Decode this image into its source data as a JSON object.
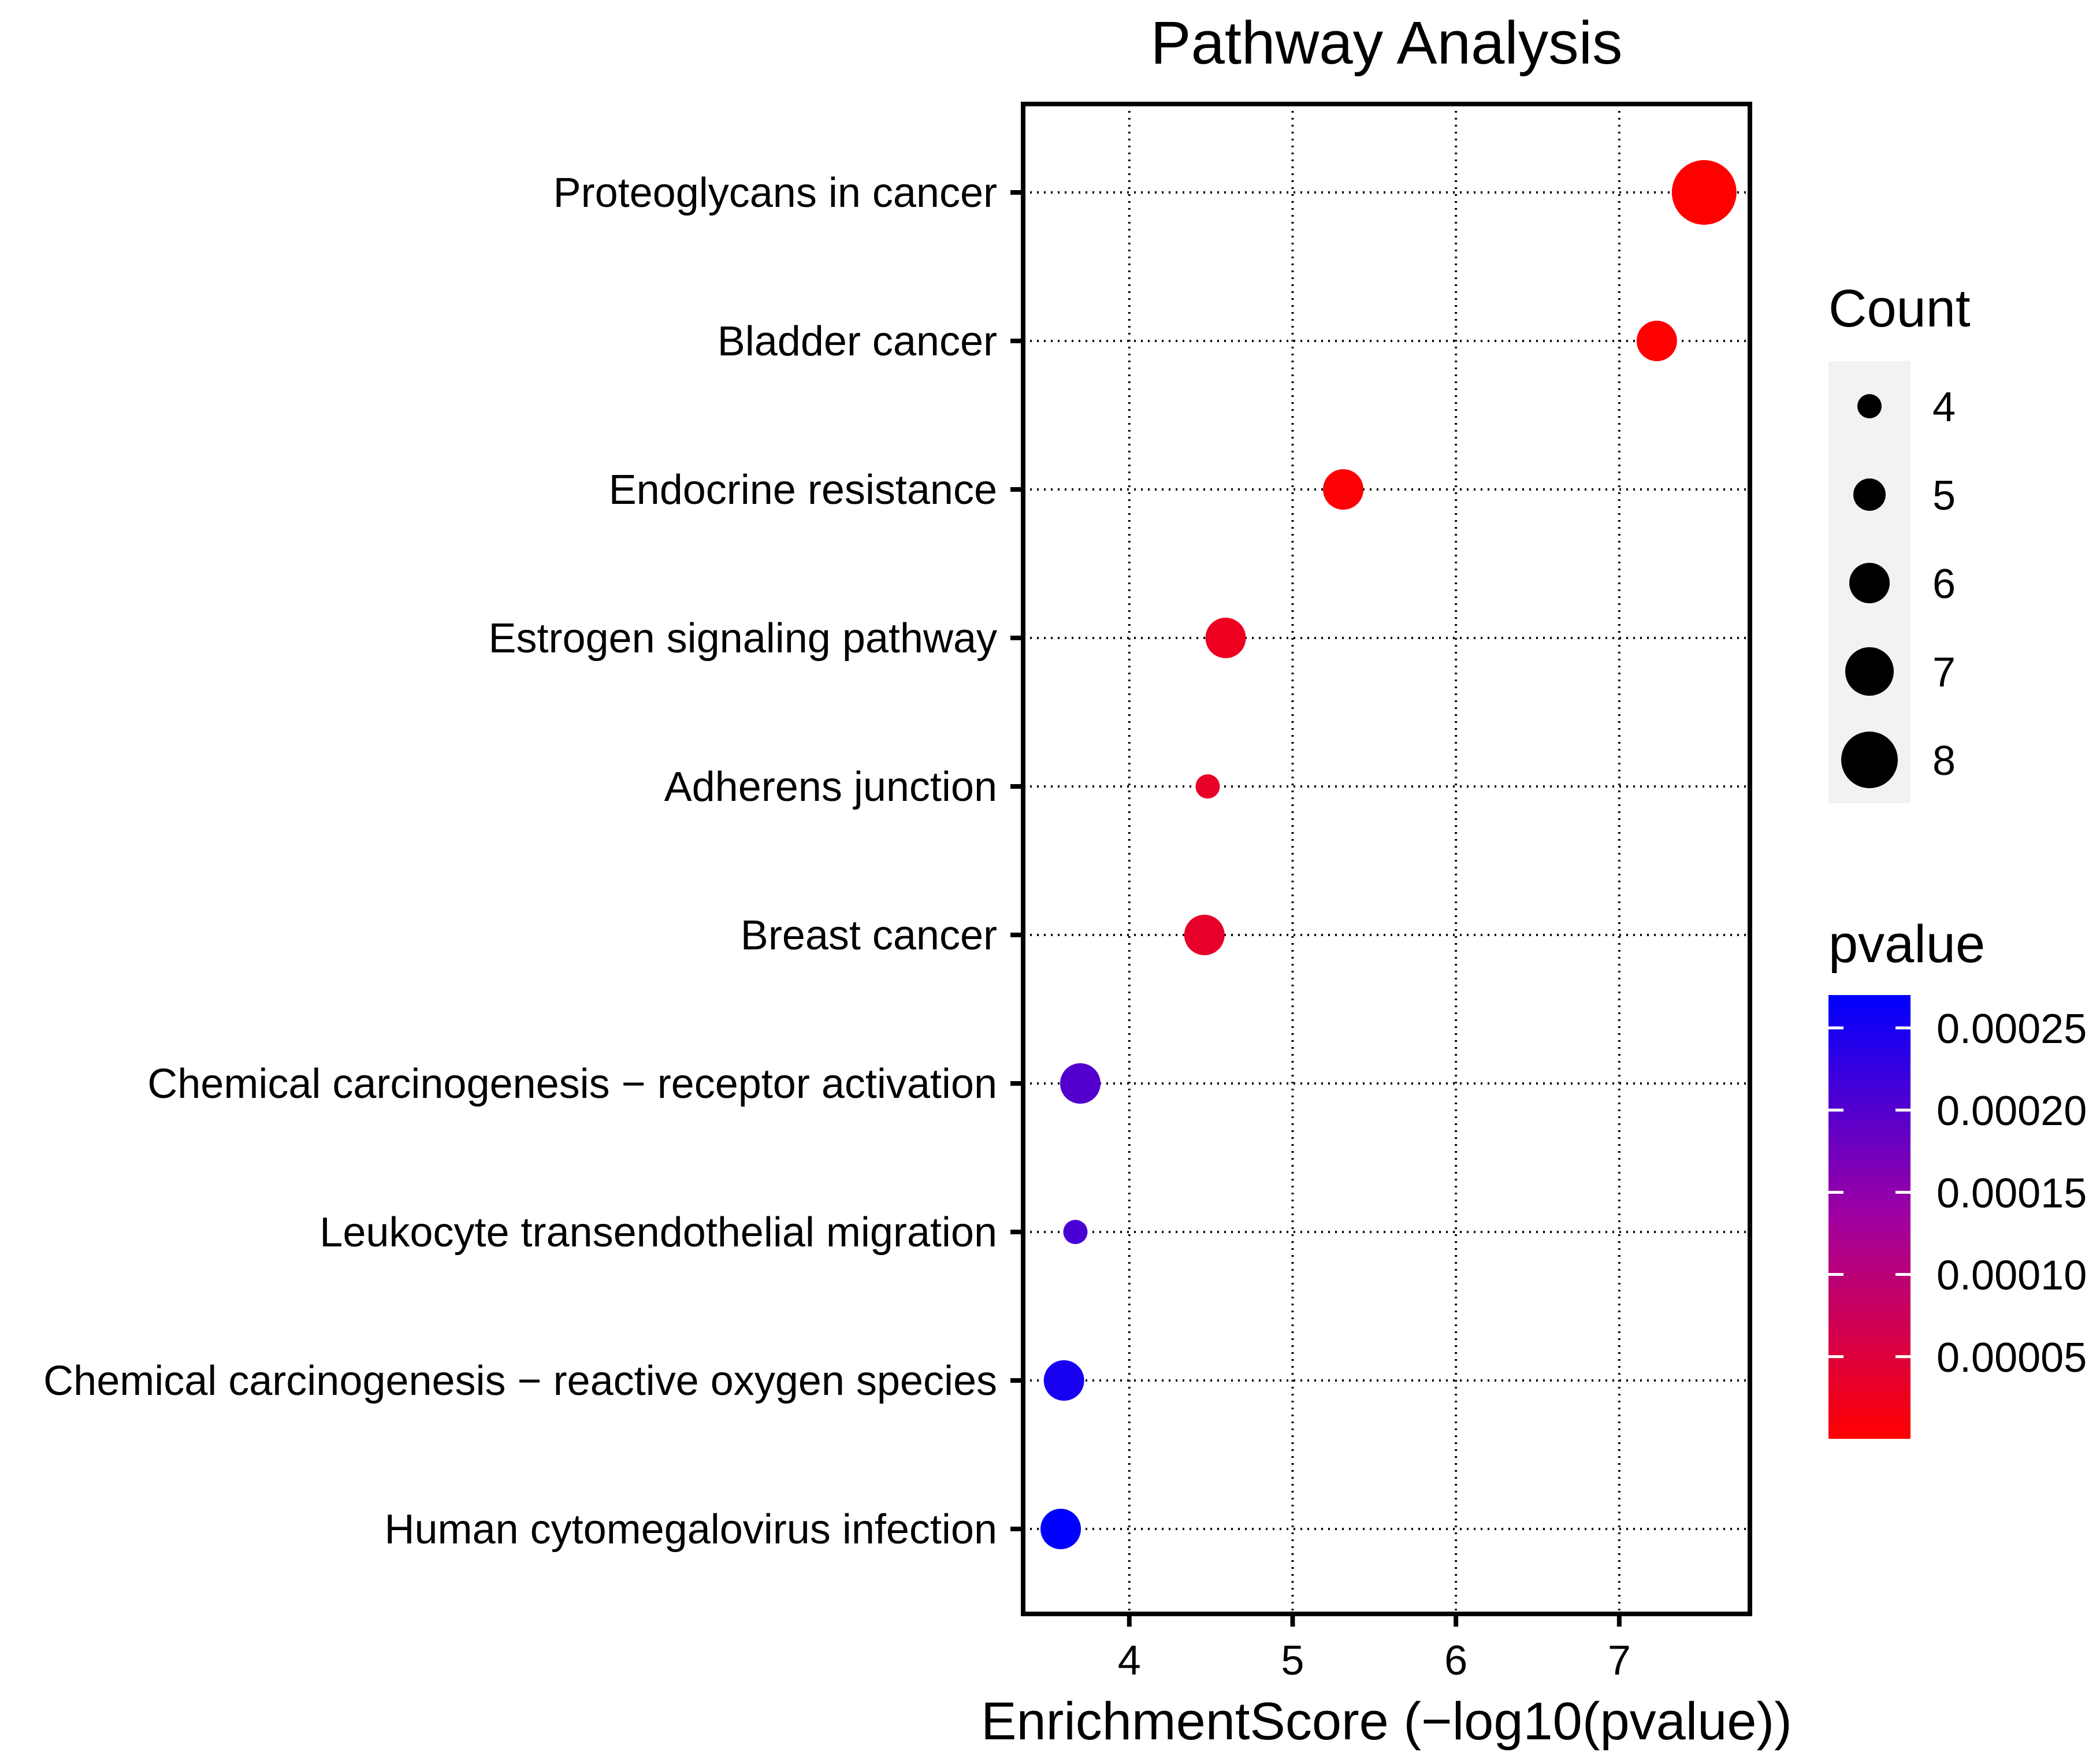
{
  "chart_data": {
    "type": "scatter",
    "title": "Pathway Analysis",
    "xlabel": "EnrichmentScore (−log10(pvalue))",
    "ylabel": "",
    "xlim": [
      3.35,
      7.8
    ],
    "xticks": [
      4,
      5,
      6,
      7
    ],
    "xtick_labels": [
      "4",
      "5",
      "6",
      "7"
    ],
    "grid": true,
    "categories": [
      "Proteoglycans in cancer",
      "Bladder cancer",
      "Endocrine resistance",
      "Estrogen signaling pathway",
      "Adherens junction",
      "Breast cancer",
      "Chemical carcinogenesis − receptor activation",
      "Leukocyte transendothelial migration",
      "Chemical carcinogenesis − reactive oxygen species",
      "Human cytomegalovirus infection"
    ],
    "series": [
      {
        "name": "pathways",
        "points": [
          {
            "label": "Proteoglycans in cancer",
            "x": 7.52,
            "count": 9,
            "pvalue": 3e-08
          },
          {
            "label": "Bladder cancer",
            "x": 7.23,
            "count": 6,
            "pvalue": 6e-08
          },
          {
            "label": "Endocrine resistance",
            "x": 5.31,
            "count": 6,
            "pvalue": 4.9e-06
          },
          {
            "label": "Estrogen signaling pathway",
            "x": 4.59,
            "count": 6,
            "pvalue": 2.6e-05
          },
          {
            "label": "Adherens junction",
            "x": 4.48,
            "count": 4,
            "pvalue": 3.3e-05
          },
          {
            "label": "Breast cancer",
            "x": 4.46,
            "count": 6,
            "pvalue": 3.5e-05
          },
          {
            "label": "Chemical carcinogenesis − receptor activation",
            "x": 3.7,
            "count": 6,
            "pvalue": 0.0002
          },
          {
            "label": "Leukocyte transendothelial migration",
            "x": 3.67,
            "count": 4,
            "pvalue": 0.00021
          },
          {
            "label": "Chemical carcinogenesis − reactive oxygen species",
            "x": 3.6,
            "count": 6,
            "pvalue": 0.00025
          },
          {
            "label": "Human cytomegalovirus infection",
            "x": 3.58,
            "count": 6,
            "pvalue": 0.00027
          }
        ]
      }
    ],
    "size_legend": {
      "title": "Count",
      "values": [
        4,
        5,
        6,
        7,
        8
      ],
      "labels": [
        "4",
        "5",
        "6",
        "7",
        "8"
      ]
    },
    "color_legend": {
      "title": "pvalue",
      "range": [
        0,
        0.00027
      ],
      "ticks": [
        5e-05,
        0.0001,
        0.00015,
        0.0002,
        0.00025
      ],
      "tick_labels": [
        "0.00005",
        "0.00010",
        "0.00015",
        "0.00020",
        "0.00025"
      ],
      "low_color": "#ff0000",
      "high_color": "#0000ff"
    }
  }
}
